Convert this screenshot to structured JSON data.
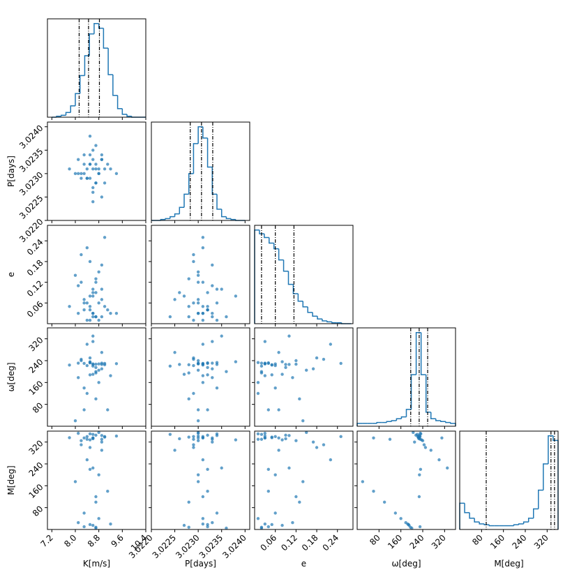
{
  "chart_data": {
    "type": "corner",
    "color": "#1f77b4",
    "parameters": [
      {
        "label": "K[m/s]",
        "lim": [
          7.05,
          10.4
        ],
        "ticks": [
          7.2,
          {
            "value": 8,
            "label": "8.0"
          },
          8.8,
          9.6,
          10.4
        ]
      },
      {
        "label": "P[days]",
        "lim": [
          3.022,
          3.0241
        ],
        "ticks": [
          {
            "value": 3.022,
            "label": "3.0220"
          },
          3.0225,
          {
            "value": 3.023,
            "label": "3.0230"
          },
          3.0235,
          {
            "value": 3.024,
            "label": "3.0240"
          }
        ]
      },
      {
        "label": "e",
        "lim": [
          0,
          0.285
        ],
        "ticks": [
          0.06,
          0.12,
          0.18,
          0.24
        ]
      },
      {
        "label": "ω[deg]",
        "lim": [
          0,
          360
        ],
        "ticks": [
          80,
          160,
          240,
          320
        ]
      },
      {
        "label": "M[deg]",
        "lim": [
          0,
          360
        ],
        "ticks": [
          80,
          160,
          240,
          320
        ]
      }
    ],
    "histograms": [
      {
        "bins": [
          7.2,
          7.36,
          7.52,
          7.68,
          7.84,
          8.0,
          8.16,
          8.32,
          8.48,
          8.64,
          8.8,
          8.96,
          9.12,
          9.28,
          9.44,
          9.6,
          9.76,
          9.92,
          10.08,
          10.24,
          10.4
        ],
        "counts": [
          0,
          1,
          2,
          5,
          12,
          25,
          44,
          65,
          88,
          99,
          94,
          73,
          45,
          23,
          9,
          3,
          1,
          0,
          0,
          0
        ],
        "quantiles": [
          8.13,
          8.45,
          8.82
        ]
      },
      {
        "bins": [
          3.022,
          3.0221,
          3.0222,
          3.0223,
          3.0224,
          3.0225,
          3.0226,
          3.0227,
          3.0228,
          3.0229,
          3.023,
          3.0231,
          3.0232,
          3.0233,
          3.0234,
          3.0235,
          3.0236,
          3.0237,
          3.0238,
          3.0239,
          3.024
        ],
        "counts": [
          0,
          0,
          1,
          2,
          4,
          7,
          14,
          28,
          50,
          82,
          100,
          88,
          57,
          28,
          12,
          4,
          2,
          1,
          0,
          0
        ],
        "quantiles": [
          3.02283,
          3.02307,
          3.02331
        ]
      },
      {
        "bins": [
          0,
          0.014,
          0.028,
          0.042,
          0.056,
          0.07,
          0.084,
          0.098,
          0.112,
          0.126,
          0.14,
          0.154,
          0.168,
          0.182,
          0.196,
          0.21,
          0.224,
          0.238,
          0.252,
          0.266,
          0.28
        ],
        "counts": [
          100,
          96,
          92,
          86,
          80,
          68,
          56,
          42,
          32,
          24,
          18,
          12,
          8,
          5,
          3,
          2,
          1,
          1,
          0,
          0
        ],
        "quantiles": [
          0.02,
          0.06,
          0.114
        ]
      },
      {
        "bins": [
          0,
          18,
          36,
          54,
          72,
          90,
          108,
          126,
          144,
          162,
          180,
          198,
          216,
          234,
          252,
          270,
          288,
          306,
          324,
          342,
          360
        ],
        "counts": [
          3,
          3,
          3,
          3,
          4,
          4,
          5,
          6,
          8,
          10,
          18,
          55,
          100,
          55,
          15,
          8,
          6,
          5,
          4,
          3
        ],
        "quantiles": [
          196,
          227,
          258
        ]
      },
      {
        "bins": [
          0,
          18,
          36,
          54,
          72,
          90,
          108,
          126,
          144,
          162,
          180,
          198,
          216,
          234,
          252,
          270,
          288,
          306,
          324,
          342,
          360
        ],
        "counts": [
          28,
          18,
          12,
          8,
          6,
          5,
          4,
          4,
          4,
          4,
          4,
          5,
          6,
          8,
          12,
          22,
          42,
          70,
          100,
          95
        ],
        "quantiles": [
          97,
          334,
          347
        ]
      }
    ],
    "samples": [
      [
        8.6,
        3.0231,
        0.03,
        228,
        335
      ],
      [
        8.4,
        3.0229,
        0.06,
        222,
        340
      ],
      [
        8.9,
        3.0233,
        0.02,
        231,
        330
      ],
      [
        8.7,
        3.0232,
        0.09,
        215,
        345
      ],
      [
        8.2,
        3.023,
        0.12,
        240,
        325
      ],
      [
        9.0,
        3.0228,
        0.05,
        225,
        338
      ],
      [
        8.5,
        3.0234,
        0.01,
        233,
        350
      ],
      [
        8.8,
        3.023,
        0.15,
        205,
        355
      ],
      [
        8.3,
        3.0232,
        0.04,
        230,
        10
      ],
      [
        8.6,
        3.0227,
        0.08,
        190,
        15
      ],
      [
        9.2,
        3.0231,
        0.03,
        185,
        20
      ],
      [
        8.1,
        3.0233,
        0.11,
        178,
        25
      ],
      [
        8.7,
        3.0236,
        0.02,
        200,
        5
      ],
      [
        8.5,
        3.0229,
        0.18,
        250,
        300
      ],
      [
        8.9,
        3.0225,
        0.07,
        270,
        290
      ],
      [
        8.4,
        3.0231,
        0.22,
        300,
        255
      ],
      [
        8.6,
        3.0235,
        0.1,
        330,
        225
      ],
      [
        8.0,
        3.023,
        0.14,
        20,
        175
      ],
      [
        9.1,
        3.0232,
        0.04,
        60,
        140
      ],
      [
        8.7,
        3.0228,
        0.13,
        100,
        100
      ],
      [
        8.3,
        3.0234,
        0.06,
        140,
        60
      ],
      [
        8.8,
        3.0231,
        0.01,
        160,
        40
      ],
      [
        8.6,
        3.0226,
        0.09,
        226,
        332
      ],
      [
        7.8,
        3.0231,
        0.05,
        224,
        336
      ],
      [
        9.4,
        3.023,
        0.03,
        229,
        342
      ],
      [
        8.5,
        3.0238,
        0.08,
        236,
        328
      ],
      [
        8.6,
        3.0224,
        0.02,
        220,
        348
      ],
      [
        8.9,
        3.0233,
        0.17,
        210,
        320
      ],
      [
        8.2,
        3.0229,
        0.2,
        245,
        310
      ],
      [
        8.7,
        3.0231,
        0.12,
        227,
        120
      ],
      [
        8.5,
        3.0232,
        0.04,
        232,
        220
      ],
      [
        8.8,
        3.023,
        0.06,
        228,
        200
      ],
      [
        8.4,
        3.0229,
        0.01,
        120,
        330
      ],
      [
        8.6,
        3.0233,
        0.03,
        310,
        335
      ],
      [
        9.0,
        3.0231,
        0.25,
        230,
        340
      ],
      [
        8.3,
        3.023,
        0.07,
        60,
        335
      ],
      [
        8.7,
        3.0228,
        0.02,
        195,
        8
      ],
      [
        8.5,
        3.0232,
        0.05,
        188,
        18
      ],
      [
        8.9,
        3.0234,
        0.1,
        226,
        344
      ],
      [
        8.1,
        3.023,
        0.03,
        231,
        352
      ]
    ]
  }
}
